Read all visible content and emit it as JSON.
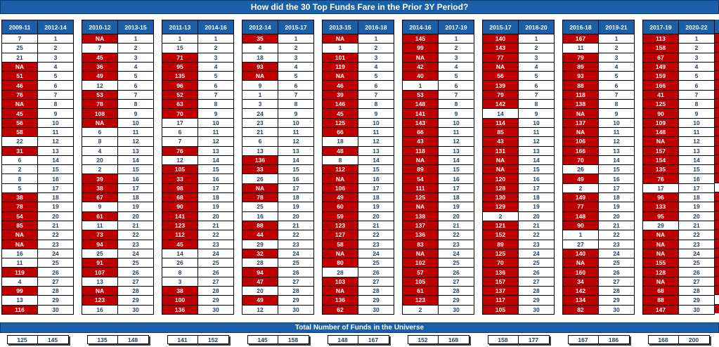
{
  "title": "How did the 30 Top Funds Fare in the Prior 3Y Period?",
  "universe": {
    "title": "Total Number of Funds in the Universe"
  },
  "colors": {
    "header_blue": "#1A5FA8",
    "flag_red": "#C00000",
    "cell_text": "#243F60",
    "bar_text": "#FFFFFF"
  },
  "ranks": [
    1,
    2,
    3,
    4,
    5,
    6,
    7,
    8,
    9,
    10,
    11,
    12,
    13,
    14,
    15,
    16,
    17,
    18,
    19,
    20,
    21,
    22,
    23,
    24,
    25,
    26,
    27,
    28,
    29,
    30
  ],
  "red_rule": "value is NA or greater than 30",
  "groups": [
    {
      "periods": [
        "2009-11",
        "2012-14"
      ],
      "values": [
        "7",
        "25",
        "21",
        "NA",
        "51",
        "46",
        "76",
        "NA",
        "45",
        "56",
        "58",
        "22",
        "31",
        "6",
        "2",
        "8",
        "5",
        "38",
        "78",
        "54",
        "85",
        "NA",
        "NA",
        "16",
        "11",
        "119",
        "4",
        "99",
        "13",
        "116"
      ],
      "universe_totals": [
        "125",
        "145"
      ]
    },
    {
      "periods": [
        "2010-12",
        "2013-15"
      ],
      "values": [
        "NA",
        "7",
        "45",
        "36",
        "49",
        "12",
        "53",
        "78",
        "108",
        "NA",
        "6",
        "8",
        "4",
        "20",
        "2",
        "39",
        "38",
        "67",
        "9",
        "61",
        "11",
        "73",
        "94",
        "25",
        "91",
        "107",
        "13",
        "NA",
        "123",
        "16"
      ],
      "universe_totals": [
        "135",
        "148"
      ]
    },
    {
      "periods": [
        "2011-13",
        "2014-16"
      ],
      "values": [
        "1",
        "15",
        "71",
        "95",
        "135",
        "96",
        "52",
        "63",
        "70",
        "17",
        "6",
        "7",
        "76",
        "12",
        "105",
        "33",
        "98",
        "68",
        "90",
        "141",
        "123",
        "112",
        "45",
        "14",
        "26",
        "8",
        "3",
        "38",
        "100",
        "136"
      ],
      "universe_totals": [
        "141",
        "152"
      ]
    },
    {
      "periods": [
        "2012-14",
        "2015-17"
      ],
      "values": [
        "35",
        "4",
        "18",
        "93",
        "NA",
        "9",
        "1",
        "3",
        "24",
        "23",
        "21",
        "6",
        "13",
        "136",
        "33",
        "26",
        "NA",
        "78",
        "25",
        "16",
        "88",
        "44",
        "29",
        "32",
        "28",
        "94",
        "47",
        "20",
        "49",
        "12"
      ],
      "universe_totals": [
        "145",
        "158"
      ]
    },
    {
      "periods": [
        "2013-15",
        "2016-18"
      ],
      "values": [
        "NA",
        "1",
        "101",
        "119",
        "NA",
        "46",
        "39",
        "146",
        "45",
        "125",
        "66",
        "18",
        "48",
        "8",
        "112",
        "NA",
        "106",
        "49",
        "60",
        "59",
        "123",
        "127",
        "58",
        "NA",
        "80",
        "28",
        "103",
        "NA",
        "136",
        "62"
      ],
      "universe_totals": [
        "148",
        "167"
      ]
    },
    {
      "periods": [
        "2014-16",
        "2017-19"
      ],
      "values": [
        "145",
        "99",
        "NA",
        "42",
        "40",
        "1",
        "53",
        "148",
        "141",
        "143",
        "66",
        "43",
        "118",
        "NA",
        "89",
        "54",
        "111",
        "125",
        "NA",
        "138",
        "137",
        "136",
        "83",
        "NA",
        "102",
        "57",
        "105",
        "61",
        "123",
        "2"
      ],
      "universe_totals": [
        "152",
        "168"
      ]
    },
    {
      "periods": [
        "2015-17",
        "2018-20"
      ],
      "values": [
        "140",
        "143",
        "77",
        "NA",
        "56",
        "139",
        "79",
        "142",
        "14",
        "114",
        "85",
        "43",
        "131",
        "NA",
        "NA",
        "120",
        "128",
        "130",
        "129",
        "2",
        "121",
        "152",
        "89",
        "125",
        "70",
        "136",
        "157",
        "137",
        "117",
        "105"
      ],
      "universe_totals": [
        "158",
        "177"
      ]
    },
    {
      "periods": [
        "2016-18",
        "2019-21"
      ],
      "values": [
        "167",
        "11",
        "79",
        "89",
        "93",
        "88",
        "118",
        "138",
        "NA",
        "137",
        "NA",
        "106",
        "166",
        "70",
        "26",
        "49",
        "2",
        "149",
        "77",
        "148",
        "90",
        "1",
        "27",
        "140",
        "NA",
        "160",
        "34",
        "142",
        "134",
        "82"
      ],
      "universe_totals": [
        "167",
        "186"
      ]
    },
    {
      "periods": [
        "2017-19",
        "2020-22"
      ],
      "values": [
        "113",
        "158",
        "67",
        "149",
        "159",
        "166",
        "41",
        "125",
        "90",
        "109",
        "148",
        "NA",
        "157",
        "154",
        "135",
        "76",
        "17",
        "96",
        "133",
        "95",
        "29",
        "NA",
        "NA",
        "NA",
        "155",
        "128",
        "NA",
        "68",
        "88",
        "147"
      ],
      "universe_totals": [
        "168",
        "200"
      ]
    }
  ],
  "edge_column": {
    "white_rows": [
      17,
      29
    ]
  }
}
